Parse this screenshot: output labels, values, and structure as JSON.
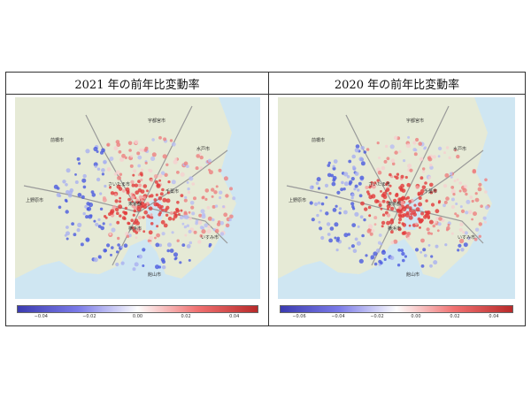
{
  "panels": [
    {
      "title": "2021 年の前年比変動率",
      "colorbar_ticks": [
        "−0.04",
        "−0.02",
        "0.00",
        "0.02",
        "0.04"
      ],
      "colorbar_range": [
        -0.05,
        0.05
      ],
      "tick_values": [
        -0.04,
        -0.02,
        0.0,
        0.02,
        0.04
      ]
    },
    {
      "title": "2020 年の前年比変動率",
      "colorbar_ticks": [
        "−0.06",
        "−0.04",
        "−0.02",
        "0.00",
        "0.02",
        "0.04"
      ],
      "colorbar_range": [
        -0.07,
        0.05
      ],
      "tick_values": [
        -0.06,
        -0.04,
        -0.02,
        0.0,
        0.02,
        0.04
      ]
    }
  ],
  "map_labels": [
    "前橋市",
    "宇都宮市",
    "水戸市",
    "さいたま市",
    "千葉市",
    "東京都",
    "横浜市",
    "上野原市",
    "いすみ市",
    "館山市"
  ],
  "colors": {
    "sea": "#cfe6f2",
    "land": "#e6ead6",
    "blue": "#4a5ae0",
    "red": "#e23a3a"
  }
}
